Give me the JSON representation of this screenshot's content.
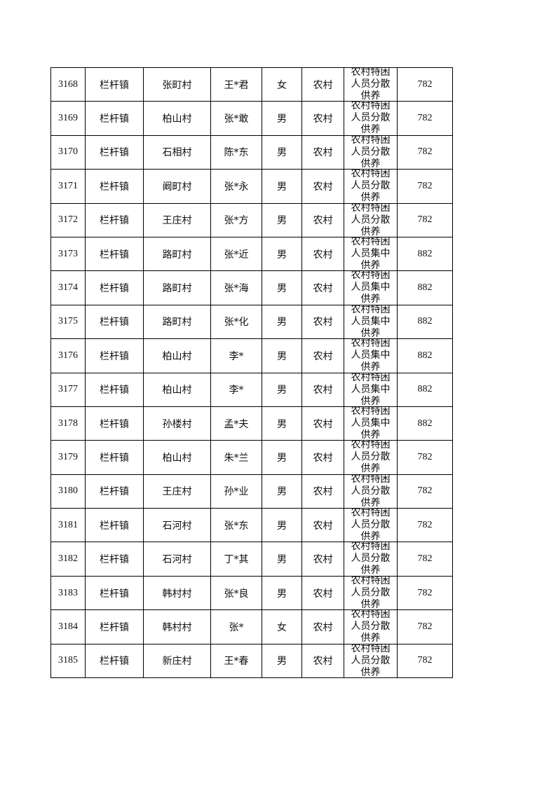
{
  "rows": [
    {
      "id": "3168",
      "town": "栏杆镇",
      "village": "张町村",
      "name": "王*君",
      "gender": "女",
      "type": "农村",
      "category": "农村特困人员分散供养",
      "amount": "782"
    },
    {
      "id": "3169",
      "town": "栏杆镇",
      "village": "柏山村",
      "name": "张*敢",
      "gender": "男",
      "type": "农村",
      "category": "农村特困人员分散供养",
      "amount": "782"
    },
    {
      "id": "3170",
      "town": "栏杆镇",
      "village": "石相村",
      "name": "陈*东",
      "gender": "男",
      "type": "农村",
      "category": "农村特困人员分散供养",
      "amount": "782"
    },
    {
      "id": "3171",
      "town": "栏杆镇",
      "village": "阚町村",
      "name": "张*永",
      "gender": "男",
      "type": "农村",
      "category": "农村特困人员分散供养",
      "amount": "782"
    },
    {
      "id": "3172",
      "town": "栏杆镇",
      "village": "王庄村",
      "name": "张*方",
      "gender": "男",
      "type": "农村",
      "category": "农村特困人员分散供养",
      "amount": "782"
    },
    {
      "id": "3173",
      "town": "栏杆镇",
      "village": "路町村",
      "name": "张*近",
      "gender": "男",
      "type": "农村",
      "category": "农村特困人员集中供养",
      "amount": "882"
    },
    {
      "id": "3174",
      "town": "栏杆镇",
      "village": "路町村",
      "name": "张*海",
      "gender": "男",
      "type": "农村",
      "category": "农村特困人员集中供养",
      "amount": "882"
    },
    {
      "id": "3175",
      "town": "栏杆镇",
      "village": "路町村",
      "name": "张*化",
      "gender": "男",
      "type": "农村",
      "category": "农村特困人员集中供养",
      "amount": "882"
    },
    {
      "id": "3176",
      "town": "栏杆镇",
      "village": "柏山村",
      "name": "李*",
      "gender": "男",
      "type": "农村",
      "category": "农村特困人员集中供养",
      "amount": "882"
    },
    {
      "id": "3177",
      "town": "栏杆镇",
      "village": "柏山村",
      "name": "李*",
      "gender": "男",
      "type": "农村",
      "category": "农村特困人员集中供养",
      "amount": "882"
    },
    {
      "id": "3178",
      "town": "栏杆镇",
      "village": "孙楼村",
      "name": "孟*夫",
      "gender": "男",
      "type": "农村",
      "category": "农村特困人员集中供养",
      "amount": "882"
    },
    {
      "id": "3179",
      "town": "栏杆镇",
      "village": "柏山村",
      "name": "朱*兰",
      "gender": "男",
      "type": "农村",
      "category": "农村特困人员分散供养",
      "amount": "782"
    },
    {
      "id": "3180",
      "town": "栏杆镇",
      "village": "王庄村",
      "name": "孙*业",
      "gender": "男",
      "type": "农村",
      "category": "农村特困人员分散供养",
      "amount": "782"
    },
    {
      "id": "3181",
      "town": "栏杆镇",
      "village": "石河村",
      "name": "张*东",
      "gender": "男",
      "type": "农村",
      "category": "农村特困人员分散供养",
      "amount": "782"
    },
    {
      "id": "3182",
      "town": "栏杆镇",
      "village": "石河村",
      "name": "丁*其",
      "gender": "男",
      "type": "农村",
      "category": "农村特困人员分散供养",
      "amount": "782"
    },
    {
      "id": "3183",
      "town": "栏杆镇",
      "village": "韩村村",
      "name": "张*良",
      "gender": "男",
      "type": "农村",
      "category": "农村特困人员分散供养",
      "amount": "782"
    },
    {
      "id": "3184",
      "town": "栏杆镇",
      "village": "韩村村",
      "name": "张*",
      "gender": "女",
      "type": "农村",
      "category": "农村特困人员分散供养",
      "amount": "782"
    },
    {
      "id": "3185",
      "town": "栏杆镇",
      "village": "新庄村",
      "name": "王*春",
      "gender": "男",
      "type": "农村",
      "category": "农村特困人员分散供养",
      "amount": "782"
    }
  ]
}
